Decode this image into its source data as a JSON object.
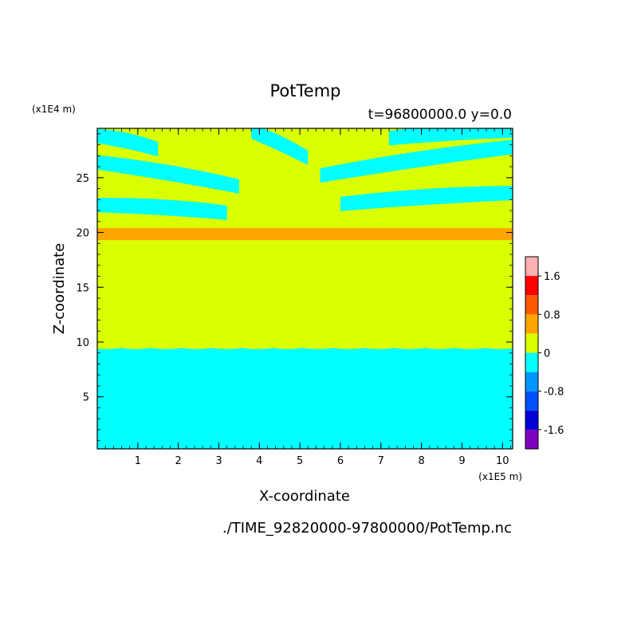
{
  "chart_data": {
    "type": "heatmap",
    "title": "PotTemp",
    "subtitle": "t=96800000.0 y=0.0",
    "xlabel": "X-coordinate",
    "ylabel": "Z-coordinate",
    "x_unit_label": "(x1E5 m)",
    "y_unit_label": "(x1E4 m)",
    "footer": "./TIME_92820000-97800000/PotTemp.nc",
    "xlim": [
      0,
      10.25
    ],
    "ylim": [
      0.25,
      29.5
    ],
    "x_ticks": [
      1,
      2,
      3,
      4,
      5,
      6,
      7,
      8,
      9,
      10
    ],
    "y_ticks": [
      5,
      10,
      15,
      20,
      25
    ],
    "colorbar": {
      "levels": [
        -2.0,
        -1.6,
        -1.2,
        -0.8,
        -0.4,
        0,
        0.4,
        0.8,
        1.2,
        1.6,
        2.0
      ],
      "colors": [
        "#7f00bf",
        "#0000d9",
        "#0050ff",
        "#0096ff",
        "#00ffff",
        "#d9ff00",
        "#ffa500",
        "#ff5a00",
        "#ff0000",
        "#ffb0b0"
      ],
      "tick_labels": [
        "1.6",
        "0.8",
        "0",
        "-0.8",
        "-1.6"
      ],
      "tick_values": [
        1.6,
        0.8,
        0,
        -0.8,
        -1.6
      ]
    },
    "field": {
      "background_value": 0.2,
      "bands": [
        {
          "z_min": 0.25,
          "z_max": 9.5,
          "value": -0.2
        },
        {
          "z_min": 9.5,
          "z_max": 19.3,
          "value": 0.2
        },
        {
          "z_min": 19.3,
          "z_max": 20.4,
          "value": 0.6
        },
        {
          "z_min": 20.4,
          "z_max": 29.5,
          "value": 0.2
        }
      ],
      "upper_cold_streaks": [
        {
          "x": [
            0.0,
            1.5
          ],
          "z": [
            28.8,
            27.6
          ],
          "value": -0.2
        },
        {
          "x": [
            0.0,
            3.5
          ],
          "z": [
            26.4,
            24.2
          ],
          "value": -0.2
        },
        {
          "x": [
            0.0,
            3.2
          ],
          "z": [
            22.5,
            21.8
          ],
          "value": -0.2
        },
        {
          "x": [
            3.8,
            5.2
          ],
          "z": [
            29.2,
            26.8
          ],
          "value": -0.2
        },
        {
          "x": [
            5.5,
            10.25
          ],
          "z": [
            25.2,
            27.8
          ],
          "value": -0.2
        },
        {
          "x": [
            6.0,
            10.25
          ],
          "z": [
            22.6,
            23.6
          ],
          "value": -0.2
        },
        {
          "x": [
            7.2,
            10.25
          ],
          "z": [
            28.6,
            29.3
          ],
          "value": -0.2
        }
      ]
    }
  }
}
